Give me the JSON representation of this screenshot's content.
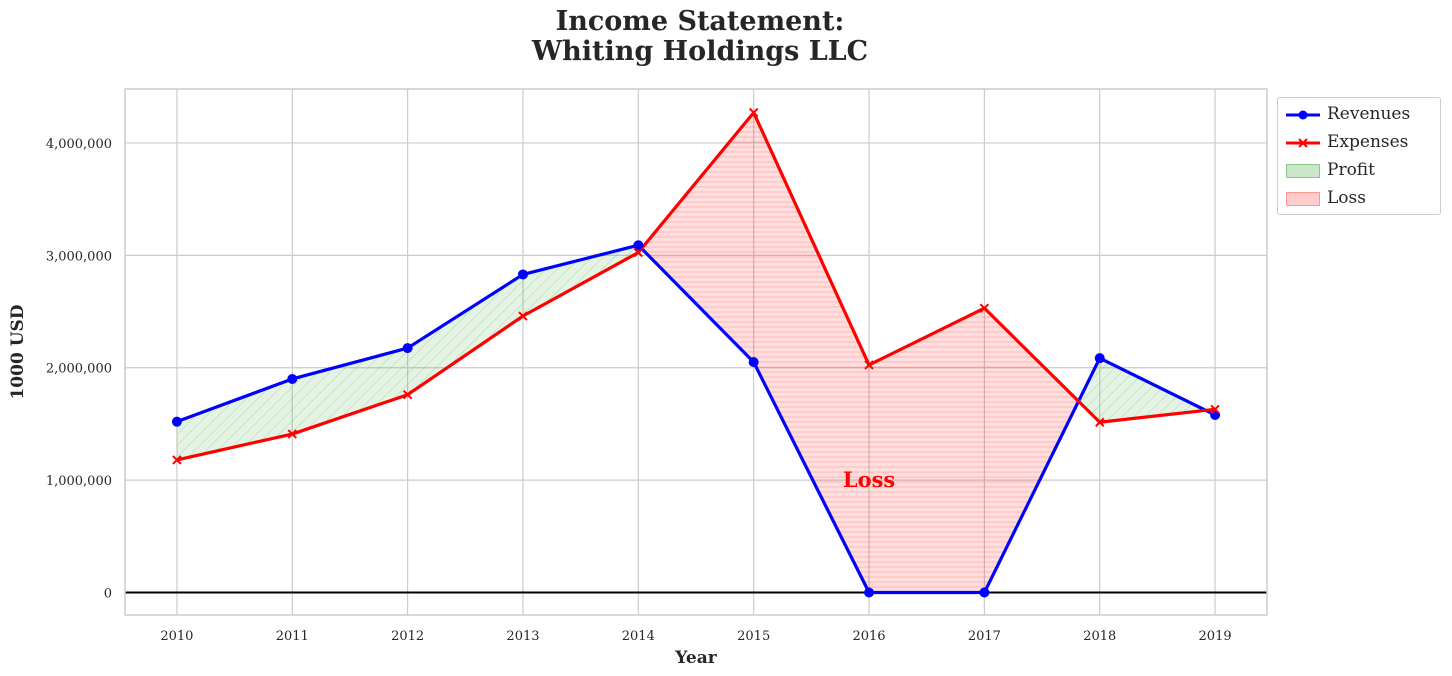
{
  "title_line1": "Income Statement:",
  "title_line2": "Whiting Holdings LLC",
  "chart_data": {
    "type": "line",
    "title": "Income Statement: Whiting Holdings LLC",
    "xlabel": "Year",
    "ylabel": "1000 USD",
    "x": [
      2010,
      2011,
      2012,
      2013,
      2014,
      2015,
      2016,
      2017,
      2018,
      2019
    ],
    "series": [
      {
        "name": "Revenues",
        "color": "#0000ff",
        "marker": "circle",
        "values": [
          1520000,
          1900000,
          2175000,
          2830000,
          3090000,
          2050000,
          0,
          0,
          2085000,
          1580000
        ]
      },
      {
        "name": "Expenses",
        "color": "#ff0000",
        "marker": "x",
        "values": [
          1180000,
          1410000,
          1760000,
          2460000,
          3025000,
          4270000,
          2025000,
          2530000,
          1515000,
          1630000
        ]
      }
    ],
    "fills": [
      {
        "name": "Profit",
        "color": "#2ca02c",
        "rule": "revenues_above_expenses"
      },
      {
        "name": "Loss",
        "color": "#ff0000",
        "rule": "expenses_above_revenues"
      }
    ],
    "annotation": {
      "text": "Loss",
      "x": 2016,
      "y": 1000000,
      "color": "#ff0000"
    },
    "ylim": [
      -200000,
      4480000
    ],
    "xlim": [
      2009.55,
      2019.45
    ],
    "yticks": [
      0,
      1000000,
      2000000,
      3000000,
      4000000
    ],
    "ytick_labels": [
      "0",
      "1,000,000",
      "2,000,000",
      "3,000,000",
      "4,000,000"
    ],
    "zero_line": true,
    "grid": true,
    "legend_position": "outside-top-right"
  }
}
